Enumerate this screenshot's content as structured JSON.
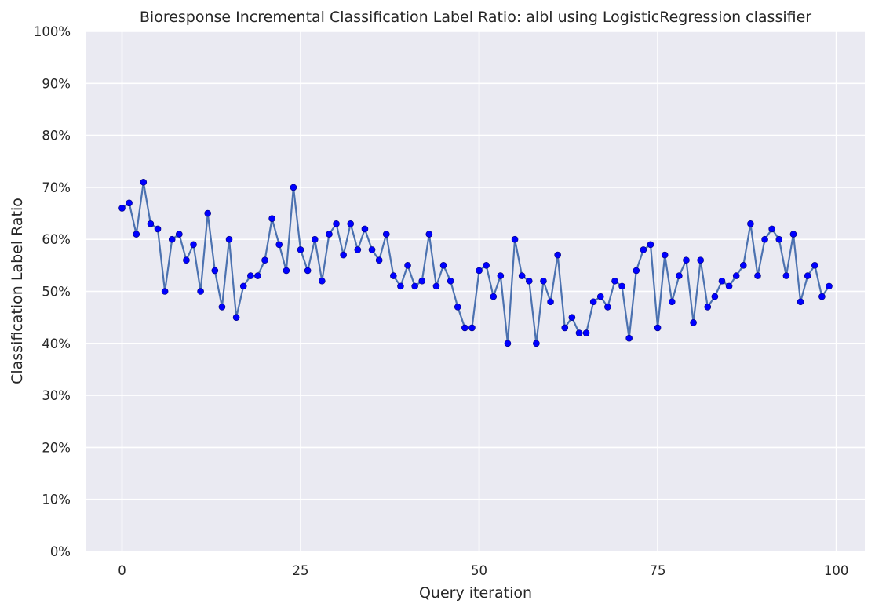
{
  "chart_data": {
    "type": "line",
    "title": "Bioresponse Incremental Classification Label Ratio: albl using LogisticRegression classifier",
    "xlabel": "Query iteration",
    "ylabel": "Classification Label Ratio",
    "xlim": [
      -5,
      104
    ],
    "ylim": [
      0,
      100
    ],
    "xticks": [
      0,
      25,
      50,
      75,
      100
    ],
    "yticks": [
      0,
      10,
      20,
      30,
      40,
      50,
      60,
      70,
      80,
      90,
      100
    ],
    "ytick_format": "percent",
    "grid": true,
    "x": [
      0,
      1,
      2,
      3,
      4,
      5,
      6,
      7,
      8,
      9,
      10,
      11,
      12,
      13,
      14,
      15,
      16,
      17,
      18,
      19,
      20,
      21,
      22,
      23,
      24,
      25,
      26,
      27,
      28,
      29,
      30,
      31,
      32,
      33,
      34,
      35,
      36,
      37,
      38,
      39,
      40,
      41,
      42,
      43,
      44,
      45,
      46,
      47,
      48,
      49,
      50,
      51,
      52,
      53,
      54,
      55,
      56,
      57,
      58,
      59,
      60,
      61,
      62,
      63,
      64,
      65,
      66,
      67,
      68,
      69,
      70,
      71,
      72,
      73,
      74,
      75,
      76,
      77,
      78,
      79,
      80,
      81,
      82,
      83,
      84,
      85,
      86,
      87,
      88,
      89,
      90,
      91,
      92,
      93,
      94,
      95,
      96,
      97,
      98,
      99
    ],
    "series": [
      {
        "values": [
          66,
          67,
          61,
          71,
          63,
          62,
          50,
          60,
          61,
          56,
          59,
          50,
          65,
          54,
          47,
          60,
          45,
          51,
          53,
          53,
          56,
          64,
          59,
          54,
          70,
          58,
          54,
          60,
          52,
          61,
          63,
          57,
          63,
          58,
          62,
          58,
          56,
          61,
          53,
          51,
          55,
          51,
          52,
          61,
          51,
          55,
          52,
          47,
          43,
          43,
          54,
          55,
          49,
          53,
          40,
          60,
          53,
          52,
          40,
          52,
          48,
          57,
          43,
          45,
          42,
          42,
          48,
          49,
          47,
          52,
          51,
          41,
          54,
          58,
          59,
          43,
          57,
          48,
          53,
          56,
          44,
          56,
          47,
          49,
          52,
          51,
          53,
          55,
          63,
          53,
          60,
          62,
          60,
          53,
          61,
          48,
          53,
          55,
          49,
          51
        ],
        "line_color": "#4c72b0",
        "marker_color": "#0000ff"
      }
    ],
    "colors": {
      "plot_background": "#eaeaf2",
      "grid": "#ffffff",
      "text": "#262626"
    }
  }
}
